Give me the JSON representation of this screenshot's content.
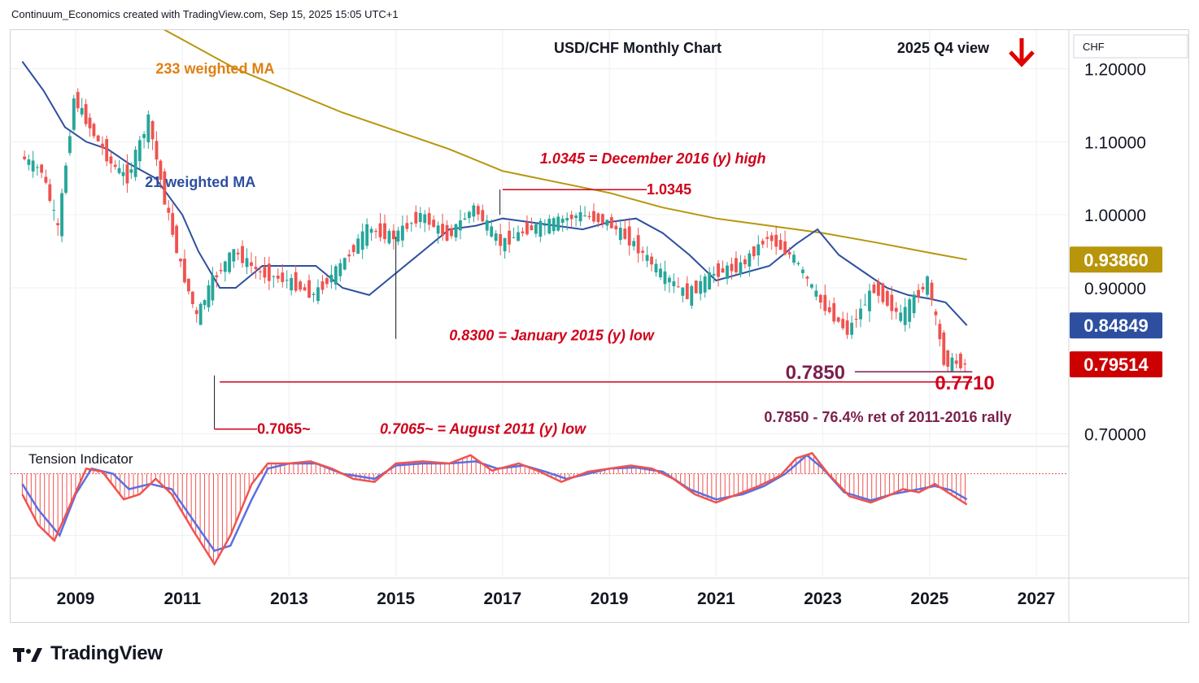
{
  "header": {
    "credit": "Continuum_Economics created with TradingView.com, Sep 15, 2025 15:05 UTC+1"
  },
  "branding": {
    "logo_text": "TradingView"
  },
  "chart_data": {
    "type": "candlestick",
    "title": "USD/CHF Monthly Chart",
    "subtitle": "2025 Q4 view",
    "currency_label": "CHF",
    "x_ticks": [
      "2009",
      "2011",
      "2013",
      "2015",
      "2017",
      "2019",
      "2021",
      "2023",
      "2025",
      "2027"
    ],
    "y_ticks": [
      "1.20000",
      "1.10000",
      "1.00000",
      "0.90000",
      "0.70000"
    ],
    "y_tick_values": [
      1.2,
      1.1,
      1.0,
      0.9,
      0.7
    ],
    "x_range": [
      2007.9,
      2027.8
    ],
    "y_range": [
      0.685,
      1.253
    ],
    "colors": {
      "up": "#26a69a",
      "down": "#ef5350",
      "ma21": "#2e4fa0",
      "ma233": "#b8960c",
      "annotation": "#d0021b",
      "retracement": "#7b1f4d",
      "ti_fast": "#ef5350",
      "ti_slow": "#5b6fe0"
    },
    "price_badges": [
      {
        "label": "0.93860",
        "value": 0.9386,
        "color": "#b8960c"
      },
      {
        "label": "0.84849",
        "value": 0.8485,
        "color": "#2e4fa0"
      },
      {
        "label": "0.79514",
        "value": 0.7951,
        "color": "#cc0000"
      }
    ],
    "moving_averages": [
      {
        "name": "233 weighted MA",
        "points": [
          [
            2010.5,
            1.26
          ],
          [
            2012,
            1.2
          ],
          [
            2014,
            1.14
          ],
          [
            2016,
            1.09
          ],
          [
            2017,
            1.06
          ],
          [
            2018,
            1.045
          ],
          [
            2019,
            1.03
          ],
          [
            2020,
            1.01
          ],
          [
            2021,
            0.995
          ],
          [
            2022,
            0.985
          ],
          [
            2023,
            0.975
          ],
          [
            2024,
            0.962
          ],
          [
            2025,
            0.948
          ],
          [
            2025.7,
            0.9386
          ]
        ]
      },
      {
        "name": "21 weighted MA",
        "points": [
          [
            2008,
            1.21
          ],
          [
            2008.4,
            1.17
          ],
          [
            2008.8,
            1.12
          ],
          [
            2009.2,
            1.1
          ],
          [
            2009.6,
            1.09
          ],
          [
            2010,
            1.07
          ],
          [
            2010.5,
            1.05
          ],
          [
            2011,
            1.0
          ],
          [
            2011.3,
            0.95
          ],
          [
            2011.7,
            0.9
          ],
          [
            2012,
            0.9
          ],
          [
            2012.5,
            0.93
          ],
          [
            2013,
            0.93
          ],
          [
            2013.5,
            0.93
          ],
          [
            2014,
            0.9
          ],
          [
            2014.5,
            0.89
          ],
          [
            2015,
            0.92
          ],
          [
            2015.5,
            0.95
          ],
          [
            2016,
            0.98
          ],
          [
            2016.5,
            0.985
          ],
          [
            2017,
            0.995
          ],
          [
            2017.5,
            0.99
          ],
          [
            2018,
            0.985
          ],
          [
            2018.5,
            0.98
          ],
          [
            2019,
            0.99
          ],
          [
            2019.5,
            0.995
          ],
          [
            2020,
            0.975
          ],
          [
            2020.5,
            0.945
          ],
          [
            2021,
            0.91
          ],
          [
            2021.5,
            0.92
          ],
          [
            2022,
            0.93
          ],
          [
            2022.5,
            0.96
          ],
          [
            2022.9,
            0.98
          ],
          [
            2023.3,
            0.945
          ],
          [
            2023.8,
            0.92
          ],
          [
            2024.2,
            0.9
          ],
          [
            2024.6,
            0.89
          ],
          [
            2025,
            0.885
          ],
          [
            2025.3,
            0.88
          ],
          [
            2025.7,
            0.8485
          ]
        ]
      }
    ],
    "candles_approx": [
      [
        2008,
        1.14,
        1.08,
        1.15,
        1.06
      ],
      [
        2008.4,
        1.08,
        1.06,
        1.1,
        1.0
      ],
      [
        2008.7,
        1.06,
        0.98,
        1.08,
        0.97
      ],
      [
        2009,
        0.98,
        1.16,
        1.2,
        0.96
      ],
      [
        2009.3,
        1.16,
        1.12,
        1.19,
        1.07
      ],
      [
        2009.7,
        1.12,
        1.07,
        1.14,
        1.05
      ],
      [
        2010,
        1.07,
        1.05,
        1.1,
        1.0
      ],
      [
        2010.4,
        1.05,
        1.13,
        1.17,
        1.04
      ],
      [
        2010.7,
        1.13,
        1.02,
        1.14,
        1.0
      ],
      [
        2011,
        1.02,
        0.93,
        1.04,
        0.92
      ],
      [
        2011.3,
        0.93,
        0.86,
        0.95,
        0.8
      ],
      [
        2011.6,
        0.86,
        0.91,
        0.93,
        0.7065
      ],
      [
        2012,
        0.91,
        0.95,
        0.98,
        0.89
      ],
      [
        2012.5,
        0.95,
        0.92,
        0.99,
        0.91
      ],
      [
        2013,
        0.92,
        0.91,
        0.95,
        0.89
      ],
      [
        2013.5,
        0.91,
        0.89,
        0.93,
        0.88
      ],
      [
        2014,
        0.89,
        0.93,
        0.95,
        0.87
      ],
      [
        2014.5,
        0.93,
        0.98,
        1.0,
        0.92
      ],
      [
        2015,
        0.98,
        0.97,
        1.02,
        0.83
      ],
      [
        2015.5,
        0.97,
        1.0,
        1.03,
        0.93
      ],
      [
        2016,
        1.0,
        0.97,
        1.03,
        0.95
      ],
      [
        2016.5,
        0.97,
        1.01,
        1.0345,
        0.95
      ],
      [
        2017,
        1.01,
        0.96,
        1.03,
        0.94
      ],
      [
        2017.5,
        0.96,
        0.98,
        1.0,
        0.94
      ],
      [
        2018,
        0.98,
        0.99,
        1.02,
        0.92
      ],
      [
        2018.5,
        0.99,
        1.0,
        1.01,
        0.96
      ],
      [
        2019,
        1.0,
        0.99,
        1.02,
        0.97
      ],
      [
        2019.5,
        0.99,
        0.96,
        1.01,
        0.94
      ],
      [
        2020,
        0.96,
        0.92,
        0.98,
        0.91
      ],
      [
        2020.5,
        0.92,
        0.89,
        0.94,
        0.88
      ],
      [
        2021,
        0.89,
        0.92,
        0.94,
        0.87
      ],
      [
        2021.5,
        0.92,
        0.93,
        0.95,
        0.9
      ],
      [
        2022,
        0.93,
        0.97,
        1.01,
        0.92
      ],
      [
        2022.5,
        0.97,
        0.94,
        1.0,
        0.92
      ],
      [
        2023,
        0.94,
        0.88,
        0.95,
        0.86
      ],
      [
        2023.5,
        0.88,
        0.84,
        0.91,
        0.83
      ],
      [
        2024,
        0.84,
        0.9,
        0.92,
        0.83
      ],
      [
        2024.5,
        0.9,
        0.86,
        0.92,
        0.84
      ],
      [
        2025,
        0.86,
        0.91,
        0.92,
        0.86
      ],
      [
        2025.3,
        0.91,
        0.8,
        0.92,
        0.79
      ],
      [
        2025.7,
        0.8,
        0.7951,
        0.81,
        0.785
      ]
    ],
    "annotations": [
      {
        "text": "233 weighted MA",
        "color": "#e07f12",
        "x": 2010.5,
        "y": 1.2
      },
      {
        "text": "21 weighted MA",
        "color": "#2e4fa0",
        "x": 2010.3,
        "y": 1.045
      },
      {
        "text": "1.0345 = December 2016 (y) high",
        "color": "#d0021b",
        "x": 2017.7,
        "y": 1.077
      },
      {
        "text": "1.0345",
        "color": "#d0021b",
        "x": 2019.7,
        "y": 1.0345
      },
      {
        "text": "0.8300 = January 2015 (y) low",
        "color": "#d0021b",
        "x": 2016.0,
        "y": 0.835
      },
      {
        "text": "0.7065~",
        "color": "#d0021b",
        "x": 2012.4,
        "y": 0.7065
      },
      {
        "text": "0.7065~ = August 2011 (y) low",
        "color": "#d0021b",
        "x": 2014.7,
        "y": 0.7065
      },
      {
        "text": "0.7850",
        "color": "#7b1f4d",
        "x": 2022.3,
        "y": 0.785
      },
      {
        "text": "0.7710",
        "color": "#d0021b",
        "x": 2025.1,
        "y": 0.771
      },
      {
        "text": "0.7850 - 76.4% ret of 2011-2016 rally",
        "color": "#7b1f4d",
        "x": 2021.9,
        "y": 0.723
      }
    ],
    "levels": [
      {
        "value": 1.0345,
        "from": 2017.0,
        "to": 2019.7,
        "color": "#d0021b"
      },
      {
        "value": 0.771,
        "from": 2011.7,
        "to": 2025.8,
        "color": "#d0021b"
      },
      {
        "value": 0.7065,
        "from": 2011.6,
        "to": 2012.4,
        "color": "#d0021b"
      },
      {
        "value": 0.785,
        "from": 2023.6,
        "to": 2025.8,
        "color": "#7b1f4d"
      }
    ],
    "tension_indicator": {
      "label": "Tension Indicator",
      "y_range": [
        -1.0,
        0.25
      ],
      "fast": [
        [
          2008,
          -0.2
        ],
        [
          2008.3,
          -0.5
        ],
        [
          2008.6,
          -0.65
        ],
        [
          2008.9,
          -0.3
        ],
        [
          2009.2,
          0.05
        ],
        [
          2009.5,
          0.02
        ],
        [
          2009.9,
          -0.25
        ],
        [
          2010.2,
          -0.2
        ],
        [
          2010.5,
          -0.05
        ],
        [
          2010.8,
          -0.2
        ],
        [
          2011.2,
          -0.55
        ],
        [
          2011.6,
          -0.88
        ],
        [
          2011.9,
          -0.6
        ],
        [
          2012.3,
          -0.1
        ],
        [
          2012.6,
          0.1
        ],
        [
          2013,
          0.1
        ],
        [
          2013.4,
          0.12
        ],
        [
          2013.8,
          0.05
        ],
        [
          2014.2,
          -0.05
        ],
        [
          2014.6,
          -0.08
        ],
        [
          2015,
          0.1
        ],
        [
          2015.5,
          0.12
        ],
        [
          2016,
          0.1
        ],
        [
          2016.4,
          0.18
        ],
        [
          2016.8,
          0.03
        ],
        [
          2017.3,
          0.1
        ],
        [
          2017.7,
          0.02
        ],
        [
          2018.1,
          -0.08
        ],
        [
          2018.6,
          0.02
        ],
        [
          2019,
          0.05
        ],
        [
          2019.4,
          0.08
        ],
        [
          2019.8,
          0.05
        ],
        [
          2020.2,
          -0.05
        ],
        [
          2020.6,
          -0.2
        ],
        [
          2021,
          -0.28
        ],
        [
          2021.4,
          -0.2
        ],
        [
          2021.8,
          -0.12
        ],
        [
          2022.2,
          -0.02
        ],
        [
          2022.5,
          0.15
        ],
        [
          2022.8,
          0.2
        ],
        [
          2023.1,
          0.0
        ],
        [
          2023.5,
          -0.22
        ],
        [
          2023.9,
          -0.28
        ],
        [
          2024.2,
          -0.22
        ],
        [
          2024.5,
          -0.15
        ],
        [
          2024.8,
          -0.18
        ],
        [
          2025.1,
          -0.1
        ],
        [
          2025.4,
          -0.2
        ],
        [
          2025.7,
          -0.3
        ]
      ],
      "slow": [
        [
          2008,
          -0.1
        ],
        [
          2008.3,
          -0.35
        ],
        [
          2008.7,
          -0.6
        ],
        [
          2009,
          -0.2
        ],
        [
          2009.3,
          0.05
        ],
        [
          2009.7,
          0.0
        ],
        [
          2010,
          -0.15
        ],
        [
          2010.4,
          -0.1
        ],
        [
          2010.8,
          -0.15
        ],
        [
          2011.2,
          -0.45
        ],
        [
          2011.6,
          -0.75
        ],
        [
          2011.9,
          -0.7
        ],
        [
          2012.3,
          -0.25
        ],
        [
          2012.6,
          0.05
        ],
        [
          2013,
          0.1
        ],
        [
          2013.5,
          0.1
        ],
        [
          2014,
          0.0
        ],
        [
          2014.6,
          -0.05
        ],
        [
          2015,
          0.08
        ],
        [
          2015.5,
          0.1
        ],
        [
          2016,
          0.1
        ],
        [
          2016.5,
          0.12
        ],
        [
          2016.9,
          0.05
        ],
        [
          2017.4,
          0.08
        ],
        [
          2017.8,
          0.02
        ],
        [
          2018.2,
          -0.05
        ],
        [
          2018.6,
          0.0
        ],
        [
          2019,
          0.05
        ],
        [
          2019.5,
          0.06
        ],
        [
          2020,
          0.02
        ],
        [
          2020.5,
          -0.15
        ],
        [
          2021,
          -0.25
        ],
        [
          2021.5,
          -0.2
        ],
        [
          2021.9,
          -0.12
        ],
        [
          2022.3,
          0.0
        ],
        [
          2022.7,
          0.18
        ],
        [
          2023,
          0.05
        ],
        [
          2023.4,
          -0.18
        ],
        [
          2023.9,
          -0.26
        ],
        [
          2024.3,
          -0.2
        ],
        [
          2024.7,
          -0.16
        ],
        [
          2025.1,
          -0.12
        ],
        [
          2025.4,
          -0.16
        ],
        [
          2025.7,
          -0.25
        ]
      ]
    }
  }
}
